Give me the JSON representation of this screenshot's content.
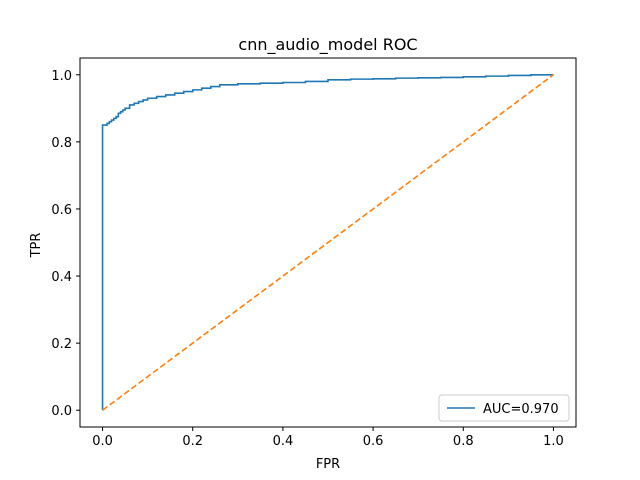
{
  "chart_data": {
    "type": "line",
    "title": "cnn_audio_model ROC",
    "xlabel": "FPR",
    "ylabel": "TPR",
    "xlim": [
      -0.05,
      1.05
    ],
    "ylim": [
      -0.05,
      1.05
    ],
    "xticks": [
      0.0,
      0.2,
      0.4,
      0.6,
      0.8,
      1.0
    ],
    "yticks": [
      0.0,
      0.2,
      0.4,
      0.6,
      0.8,
      1.0
    ],
    "xtick_labels": [
      "0.0",
      "0.2",
      "0.4",
      "0.6",
      "0.8",
      "1.0"
    ],
    "ytick_labels": [
      "0.0",
      "0.2",
      "0.4",
      "0.6",
      "0.8",
      "1.0"
    ],
    "grid": false,
    "legend_position": "lower-right",
    "series": [
      {
        "name": "AUC=0.970",
        "color": "#1f77b4",
        "style": "step",
        "x": [
          0.0,
          0.0,
          0.005,
          0.01,
          0.015,
          0.02,
          0.025,
          0.03,
          0.035,
          0.04,
          0.045,
          0.05,
          0.06,
          0.07,
          0.08,
          0.09,
          0.1,
          0.12,
          0.14,
          0.16,
          0.18,
          0.2,
          0.22,
          0.24,
          0.26,
          0.3,
          0.35,
          0.4,
          0.45,
          0.5,
          0.55,
          0.6,
          0.65,
          0.7,
          0.75,
          0.8,
          0.85,
          0.9,
          0.95,
          1.0
        ],
        "y": [
          0.0,
          0.85,
          0.85,
          0.855,
          0.86,
          0.865,
          0.87,
          0.875,
          0.885,
          0.89,
          0.895,
          0.9,
          0.91,
          0.915,
          0.92,
          0.925,
          0.93,
          0.935,
          0.94,
          0.945,
          0.95,
          0.955,
          0.96,
          0.965,
          0.97,
          0.973,
          0.975,
          0.977,
          0.98,
          0.985,
          0.987,
          0.988,
          0.99,
          0.991,
          0.992,
          0.994,
          0.996,
          0.998,
          1.0,
          1.0
        ]
      },
      {
        "name": "",
        "color": "#ff7f0e",
        "style": "dashed",
        "x": [
          0.0,
          1.0
        ],
        "y": [
          0.0,
          1.0
        ]
      }
    ]
  }
}
